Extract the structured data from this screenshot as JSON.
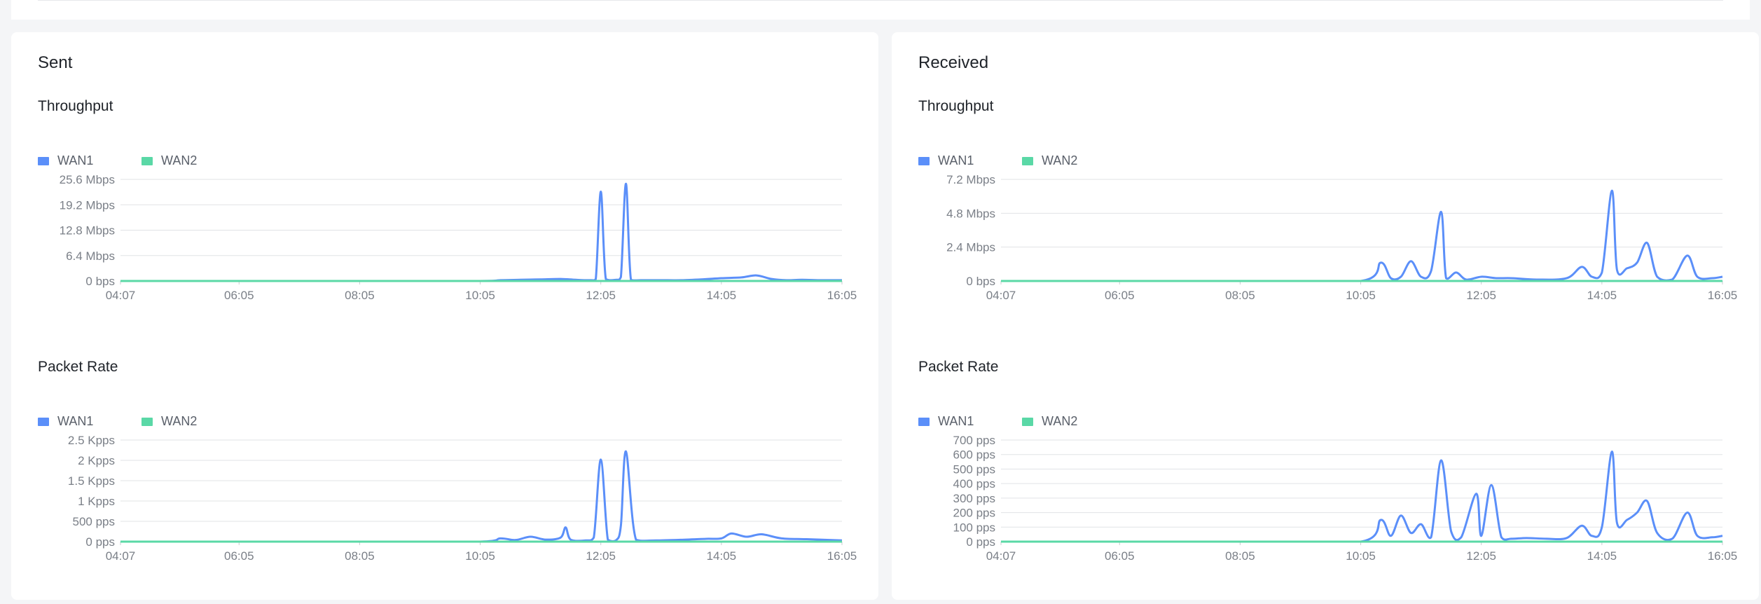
{
  "colors": {
    "wan1": "#5b8ff9",
    "wan2": "#5ad8a6",
    "grid": "#e1e3e6",
    "axis_text": "#7a7f87"
  },
  "legend": {
    "wan1": "WAN1",
    "wan2": "WAN2"
  },
  "sent": {
    "title": "Sent",
    "throughput_title": "Throughput",
    "packet_rate_title": "Packet Rate"
  },
  "received": {
    "title": "Received",
    "throughput_title": "Throughput",
    "packet_rate_title": "Packet Rate"
  },
  "chart_data": [
    {
      "id": "sent-throughput",
      "type": "line",
      "title": "Throughput",
      "unit": "Mbps",
      "ylim": [
        0,
        25.6
      ],
      "y_ticks": [
        0,
        6.4,
        12.8,
        19.2,
        25.6
      ],
      "y_tick_labels": [
        "0 bps",
        "6.4 Mbps",
        "12.8 Mbps",
        "19.2 Mbps",
        "25.6 Mbps"
      ],
      "x_tick_labels": [
        "04:07",
        "06:05",
        "08:05",
        "10:05",
        "12:05",
        "14:05",
        "16:05"
      ],
      "x": [
        "04:07",
        "06:05",
        "08:05",
        "10:05",
        "10:25",
        "10:45",
        "11:05",
        "11:25",
        "11:40",
        "11:55",
        "12:00",
        "12:05",
        "12:10",
        "12:20",
        "12:25",
        "12:30",
        "12:35",
        "12:45",
        "13:05",
        "13:25",
        "13:45",
        "14:05",
        "14:25",
        "14:40",
        "14:55",
        "15:10",
        "15:25",
        "15:45",
        "16:05"
      ],
      "grid": true,
      "legend_position": "top-left",
      "series": [
        {
          "name": "WAN1",
          "values": [
            0,
            0,
            0,
            0,
            0.2,
            0.3,
            0.4,
            0.5,
            0.3,
            0.2,
            0.5,
            22.5,
            0.5,
            0.3,
            1.0,
            24.5,
            0.3,
            0.2,
            0.2,
            0.2,
            0.4,
            0.7,
            0.9,
            1.4,
            0.5,
            0.2,
            0.3,
            0.2,
            0.2
          ]
        },
        {
          "name": "WAN2",
          "values": [
            0,
            0,
            0,
            0,
            0,
            0,
            0,
            0,
            0,
            0,
            0,
            0,
            0,
            0,
            0,
            0,
            0,
            0,
            0,
            0,
            0,
            0,
            0,
            0,
            0,
            0,
            0,
            0,
            0
          ]
        }
      ]
    },
    {
      "id": "sent-packet-rate",
      "type": "line",
      "title": "Packet Rate",
      "unit": "Kpps",
      "ylim": [
        0,
        2.5
      ],
      "y_ticks": [
        0,
        0.5,
        1,
        1.5,
        2,
        2.5
      ],
      "y_tick_labels": [
        "0 pps",
        "500 pps",
        "1 Kpps",
        "1.5 Kpps",
        "2 Kpps",
        "2.5 Kpps"
      ],
      "x_tick_labels": [
        "04:07",
        "06:05",
        "08:05",
        "10:05",
        "12:05",
        "14:05",
        "16:05"
      ],
      "x": [
        "04:07",
        "06:05",
        "08:05",
        "10:05",
        "10:25",
        "10:40",
        "10:55",
        "11:10",
        "11:25",
        "11:30",
        "11:35",
        "11:50",
        "11:58",
        "12:05",
        "12:12",
        "12:20",
        "12:25",
        "12:30",
        "12:40",
        "13:00",
        "13:30",
        "13:50",
        "14:05",
        "14:15",
        "14:30",
        "14:45",
        "15:05",
        "15:30",
        "16:05"
      ],
      "grid": true,
      "legend_position": "top-left",
      "series": [
        {
          "name": "WAN1",
          "values": [
            0,
            0,
            0,
            0,
            0.08,
            0.04,
            0.12,
            0.05,
            0.1,
            0.35,
            0.05,
            0.03,
            0.1,
            2.02,
            0.05,
            0.03,
            0.4,
            2.22,
            0.05,
            0.03,
            0.05,
            0.07,
            0.08,
            0.2,
            0.12,
            0.18,
            0.08,
            0.06,
            0.03
          ]
        },
        {
          "name": "WAN2",
          "values": [
            0,
            0,
            0,
            0,
            0,
            0,
            0,
            0,
            0,
            0,
            0,
            0,
            0,
            0,
            0,
            0,
            0,
            0,
            0,
            0,
            0,
            0,
            0,
            0,
            0,
            0,
            0,
            0,
            0
          ]
        }
      ]
    },
    {
      "id": "received-throughput",
      "type": "line",
      "title": "Throughput",
      "unit": "Mbps",
      "ylim": [
        0,
        7.2
      ],
      "y_ticks": [
        0,
        2.4,
        4.8,
        7.2
      ],
      "y_tick_labels": [
        "0 bps",
        "2.4 Mbps",
        "4.8 Mbps",
        "7.2 Mbps"
      ],
      "x_tick_labels": [
        "04:07",
        "06:05",
        "08:05",
        "10:05",
        "12:05",
        "14:05",
        "16:05"
      ],
      "x": [
        "04:07",
        "06:05",
        "08:05",
        "10:05",
        "10:25",
        "10:35",
        "10:45",
        "10:55",
        "11:05",
        "11:15",
        "11:25",
        "11:30",
        "11:40",
        "11:50",
        "12:05",
        "12:20",
        "12:35",
        "13:00",
        "13:30",
        "13:45",
        "13:55",
        "14:05",
        "14:15",
        "14:20",
        "14:30",
        "14:40",
        "14:50",
        "15:00",
        "15:15",
        "15:30",
        "15:40",
        "15:55",
        "16:05"
      ],
      "grid": true,
      "legend_position": "top-left",
      "series": [
        {
          "name": "WAN1",
          "values": [
            0,
            0,
            0,
            0,
            1.3,
            0.2,
            0.3,
            1.4,
            0.3,
            0.7,
            4.9,
            0.2,
            0.6,
            0.1,
            0.3,
            0.2,
            0.2,
            0.1,
            0.2,
            1.0,
            0.3,
            0.6,
            6.4,
            0.8,
            0.9,
            1.3,
            2.7,
            0.3,
            0.1,
            1.8,
            0.3,
            0.2,
            0.3
          ]
        },
        {
          "name": "WAN2",
          "values": [
            0,
            0,
            0,
            0,
            0,
            0,
            0,
            0,
            0,
            0,
            0,
            0,
            0,
            0,
            0,
            0,
            0,
            0,
            0,
            0,
            0,
            0,
            0,
            0,
            0,
            0,
            0,
            0,
            0,
            0,
            0,
            0,
            0
          ]
        }
      ]
    },
    {
      "id": "received-packet-rate",
      "type": "line",
      "title": "Packet Rate",
      "unit": "pps",
      "ylim": [
        0,
        700
      ],
      "y_ticks": [
        0,
        100,
        200,
        300,
        400,
        500,
        600,
        700
      ],
      "y_tick_labels": [
        "0 pps",
        "100 pps",
        "200 pps",
        "300 pps",
        "400 pps",
        "500 pps",
        "600 pps",
        "700 pps"
      ],
      "x_tick_labels": [
        "04:07",
        "06:05",
        "08:05",
        "10:05",
        "12:05",
        "14:05",
        "16:05"
      ],
      "x": [
        "04:07",
        "06:05",
        "08:05",
        "10:05",
        "10:25",
        "10:35",
        "10:45",
        "10:55",
        "11:05",
        "11:15",
        "11:25",
        "11:35",
        "11:45",
        "12:00",
        "12:05",
        "12:15",
        "12:25",
        "12:35",
        "12:50",
        "13:10",
        "13:30",
        "13:45",
        "13:55",
        "14:05",
        "14:15",
        "14:20",
        "14:30",
        "14:40",
        "14:50",
        "15:00",
        "15:15",
        "15:30",
        "15:40",
        "15:55",
        "16:05"
      ],
      "grid": true,
      "legend_position": "top-left",
      "series": [
        {
          "name": "WAN1",
          "values": [
            0,
            0,
            0,
            0,
            150,
            40,
            180,
            60,
            120,
            30,
            560,
            70,
            30,
            330,
            40,
            390,
            30,
            20,
            25,
            20,
            25,
            110,
            40,
            100,
            620,
            130,
            150,
            200,
            280,
            60,
            20,
            200,
            40,
            30,
            40
          ]
        },
        {
          "name": "WAN2",
          "values": [
            0,
            0,
            0,
            0,
            0,
            0,
            0,
            0,
            0,
            0,
            0,
            0,
            0,
            0,
            0,
            0,
            0,
            0,
            0,
            0,
            0,
            0,
            0,
            0,
            0,
            0,
            0,
            0,
            0,
            0,
            0,
            0,
            0,
            0,
            0
          ]
        }
      ]
    }
  ]
}
